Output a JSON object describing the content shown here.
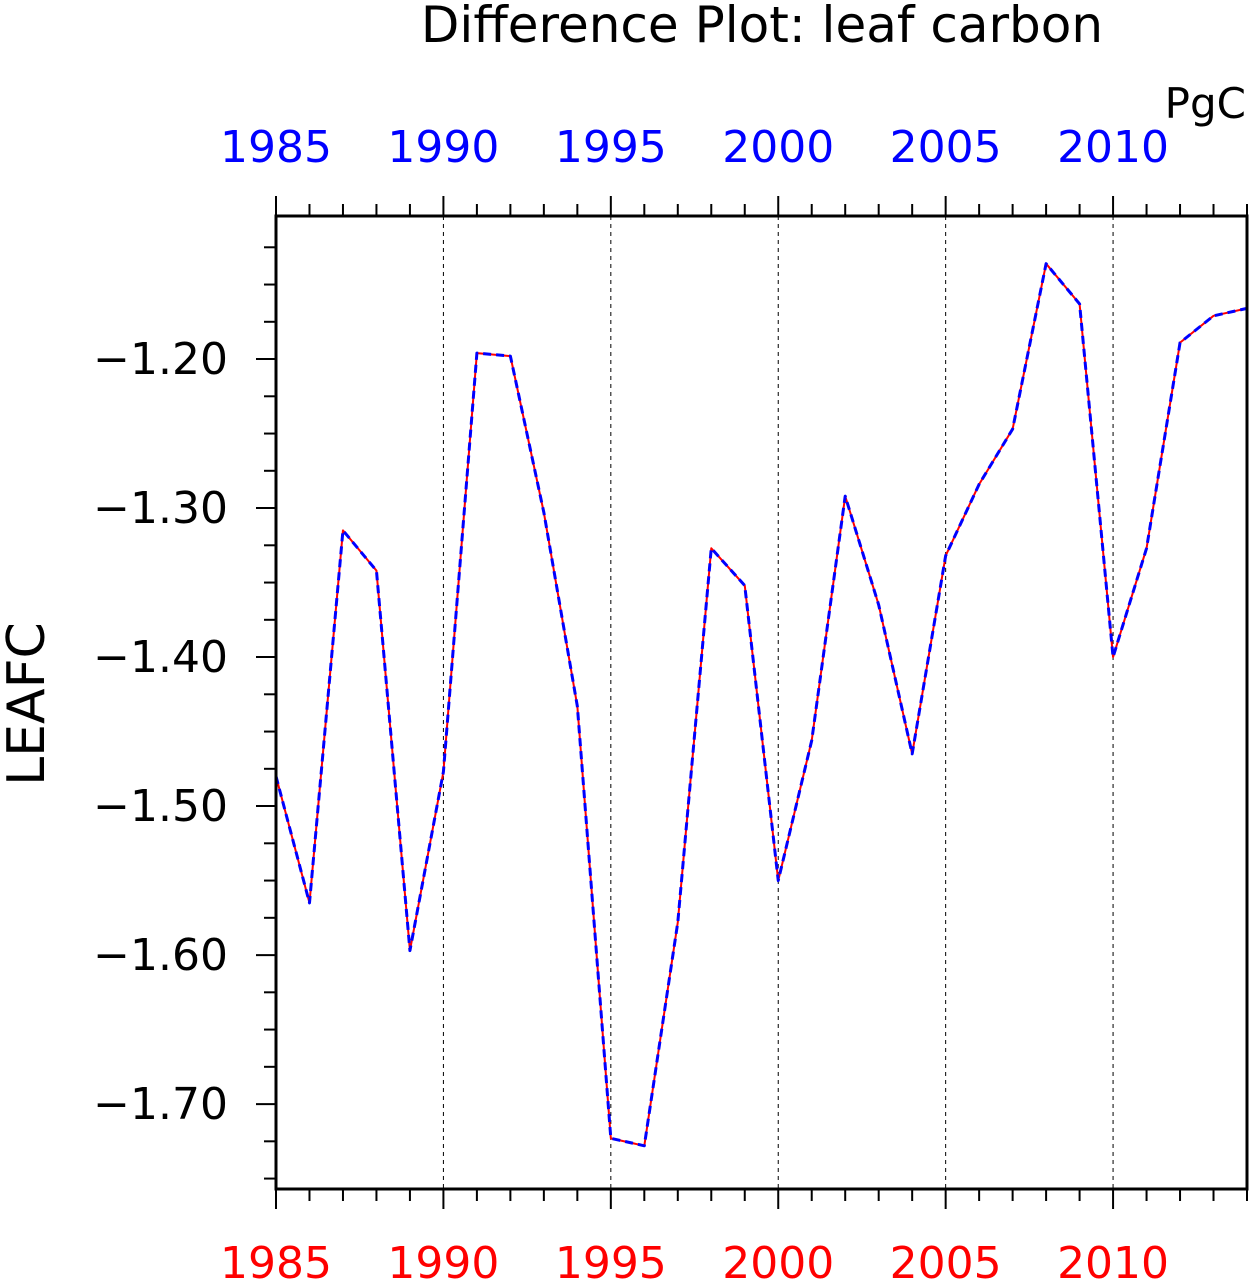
{
  "chart_data": {
    "type": "line",
    "title": "Difference Plot: leaf carbon",
    "units": "PgC",
    "ylabel": "LEAFC",
    "xlabel": "",
    "xlim": [
      1985,
      2014
    ],
    "ylim": [
      -1.757,
      -1.104
    ],
    "grid": "vertical dashed lines at each labeled year",
    "x_tick_labels": [
      "1985",
      "1990",
      "1995",
      "2000",
      "2005",
      "2010"
    ],
    "y_tick_labels": [
      "−1.20",
      "−1.30",
      "−1.40",
      "−1.50",
      "−1.60",
      "−1.70"
    ],
    "y_tick_values": [
      -1.2,
      -1.3,
      -1.4,
      -1.5,
      -1.6,
      -1.7
    ],
    "x": [
      1985,
      1986,
      1987,
      1988,
      1989,
      1990,
      1991,
      1992,
      1993,
      1994,
      1995,
      1996,
      1997,
      1998,
      1999,
      2000,
      2001,
      2002,
      2003,
      2004,
      2005,
      2006,
      2007,
      2008,
      2009,
      2010,
      2011,
      2012,
      2013,
      2014
    ],
    "series": [
      {
        "values": [
          -1.48,
          -1.565,
          -1.315,
          -1.342,
          -1.597,
          -1.477,
          -1.196,
          -1.198,
          -1.303,
          -1.433,
          -1.723,
          -1.728,
          -1.578,
          -1.327,
          -1.352,
          -1.55,
          -1.456,
          -1.292,
          -1.365,
          -1.465,
          -1.332,
          -1.284,
          -1.247,
          -1.136,
          -1.163,
          -1.4,
          -1.327,
          -1.189,
          -1.171,
          -1.166
        ],
        "color": "#0000ff",
        "style": "dashed"
      },
      {
        "values": [
          -1.48,
          -1.565,
          -1.315,
          -1.342,
          -1.597,
          -1.477,
          -1.196,
          -1.198,
          -1.303,
          -1.433,
          -1.723,
          -1.728,
          -1.578,
          -1.327,
          -1.352,
          -1.55,
          -1.456,
          -1.292,
          -1.365,
          -1.465,
          -1.332,
          -1.284,
          -1.247,
          -1.136,
          -1.163,
          -1.4,
          -1.327,
          -1.189,
          -1.171,
          -1.166
        ],
        "color": "#ff0000",
        "style": "solid"
      }
    ],
    "top_axis_label_color": "#0000ff",
    "bottom_axis_label_color": "#ff0000"
  }
}
